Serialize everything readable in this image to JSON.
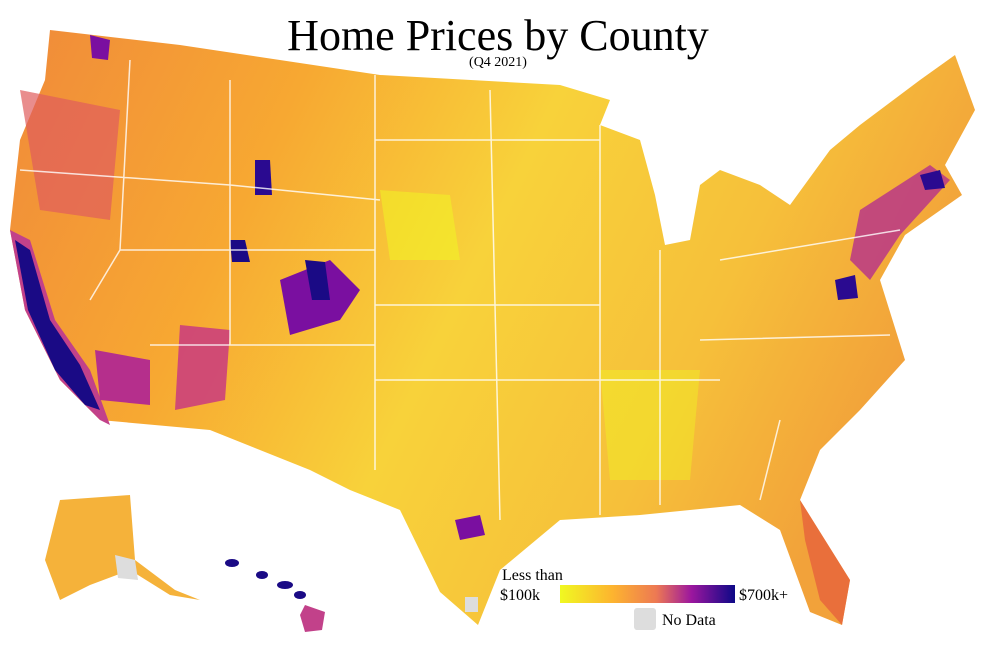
{
  "title": "Home Prices by County",
  "subtitle": "(Q4 2021)",
  "legend": {
    "low_label_top": "Less than",
    "low_label": "$100k",
    "high_label": "$700k+",
    "no_data_label": "No Data"
  }
}
